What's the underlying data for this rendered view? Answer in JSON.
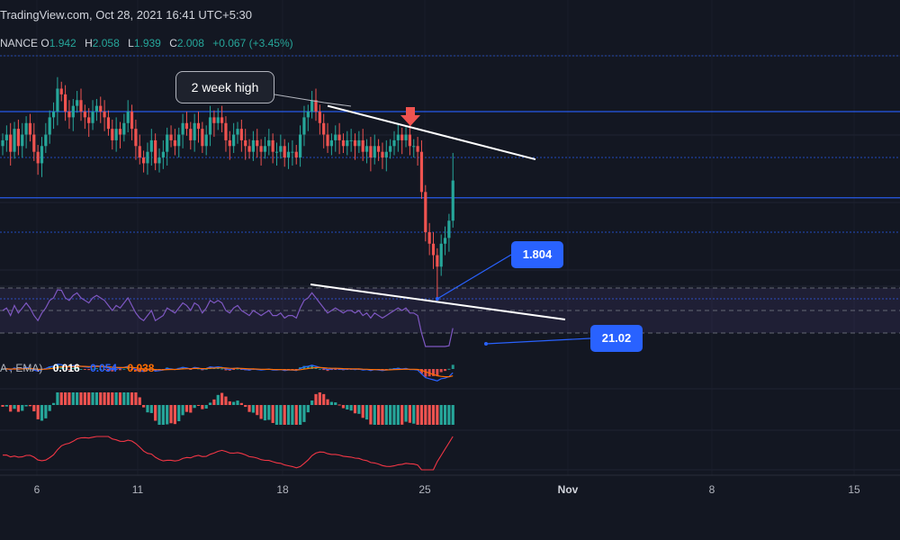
{
  "header": {
    "title": "TradingView.com, Oct 28, 2021 16:41 UTC+5:30",
    "symbol_suffix": "NANCE",
    "ohlc": [
      {
        "label": "O",
        "value": "1.942"
      },
      {
        "label": "H",
        "value": "2.058"
      },
      {
        "label": "L",
        "value": "1.939"
      },
      {
        "label": "C",
        "value": "2.008"
      }
    ],
    "change": "+0.067 (+3.45%)"
  },
  "annotation": {
    "text": "2 week high"
  },
  "price_tag": "1.804",
  "rsi_tag": "21.02",
  "macd_legend": {
    "label": "A , EMA)",
    "macd": "0.016",
    "signal": "0.054",
    "histogram": "0.038"
  },
  "xaxis": {
    "ticks": [
      {
        "label": "6",
        "major": false
      },
      {
        "label": "11",
        "major": false
      },
      {
        "label": "18",
        "major": false
      },
      {
        "label": "25",
        "major": false
      },
      {
        "label": "Nov",
        "major": true
      },
      {
        "label": "8",
        "major": false
      },
      {
        "label": "15",
        "major": false
      }
    ]
  },
  "colors": {
    "background": "#131722",
    "up": "#26a69a",
    "down": "#ef5350",
    "rsi": "#7e57c2",
    "macd": "#2962ff",
    "signal": "#ff6d00",
    "horizontal_lines": "#2962ff",
    "trendline": "#ffffff",
    "third_indicator": "#f23645"
  },
  "chart_data": {
    "type": "candlestick",
    "title": "",
    "ylabel": "",
    "xlabel": "",
    "x_ticks": [
      "6",
      "11",
      "18",
      "25",
      "Nov",
      "8",
      "15"
    ],
    "price_levels": [
      2.13,
      2.05,
      1.98,
      1.92,
      1.804
    ],
    "low_marker": 1.804,
    "last": 2.008,
    "rsi_last_label": 21.02,
    "seed_open": 2.07,
    "closes": [
      2.08,
      2.09,
      2.06,
      2.1,
      2.07,
      2.09,
      2.11,
      2.09,
      2.06,
      2.04,
      2.07,
      2.09,
      2.12,
      2.13,
      2.17,
      2.16,
      2.13,
      2.12,
      2.14,
      2.15,
      2.13,
      2.12,
      2.11,
      2.13,
      2.14,
      2.13,
      2.12,
      2.1,
      2.08,
      2.1,
      2.09,
      2.11,
      2.13,
      2.1,
      2.07,
      2.05,
      2.04,
      2.06,
      2.08,
      2.04,
      2.05,
      2.06,
      2.09,
      2.08,
      2.07,
      2.09,
      2.11,
      2.1,
      2.08,
      2.11,
      2.1,
      2.07,
      2.09,
      2.12,
      2.11,
      2.12,
      2.11,
      2.08,
      2.07,
      2.09,
      2.1,
      2.08,
      2.07,
      2.06,
      2.08,
      2.07,
      2.06,
      2.07,
      2.08,
      2.06,
      2.06,
      2.07,
      2.05,
      2.06,
      2.06,
      2.05,
      2.09,
      2.12,
      2.13,
      2.15,
      2.13,
      2.11,
      2.09,
      2.07,
      2.08,
      2.09,
      2.08,
      2.07,
      2.08,
      2.08,
      2.07,
      2.08,
      2.06,
      2.07,
      2.05,
      2.07,
      2.06,
      2.05,
      2.06,
      2.07,
      2.08,
      2.09,
      2.08,
      2.09,
      2.07,
      2.07,
      2.06,
      1.99,
      1.92,
      1.9,
      1.88,
      1.86,
      1.9,
      1.91,
      1.94,
      2.01
    ]
  }
}
